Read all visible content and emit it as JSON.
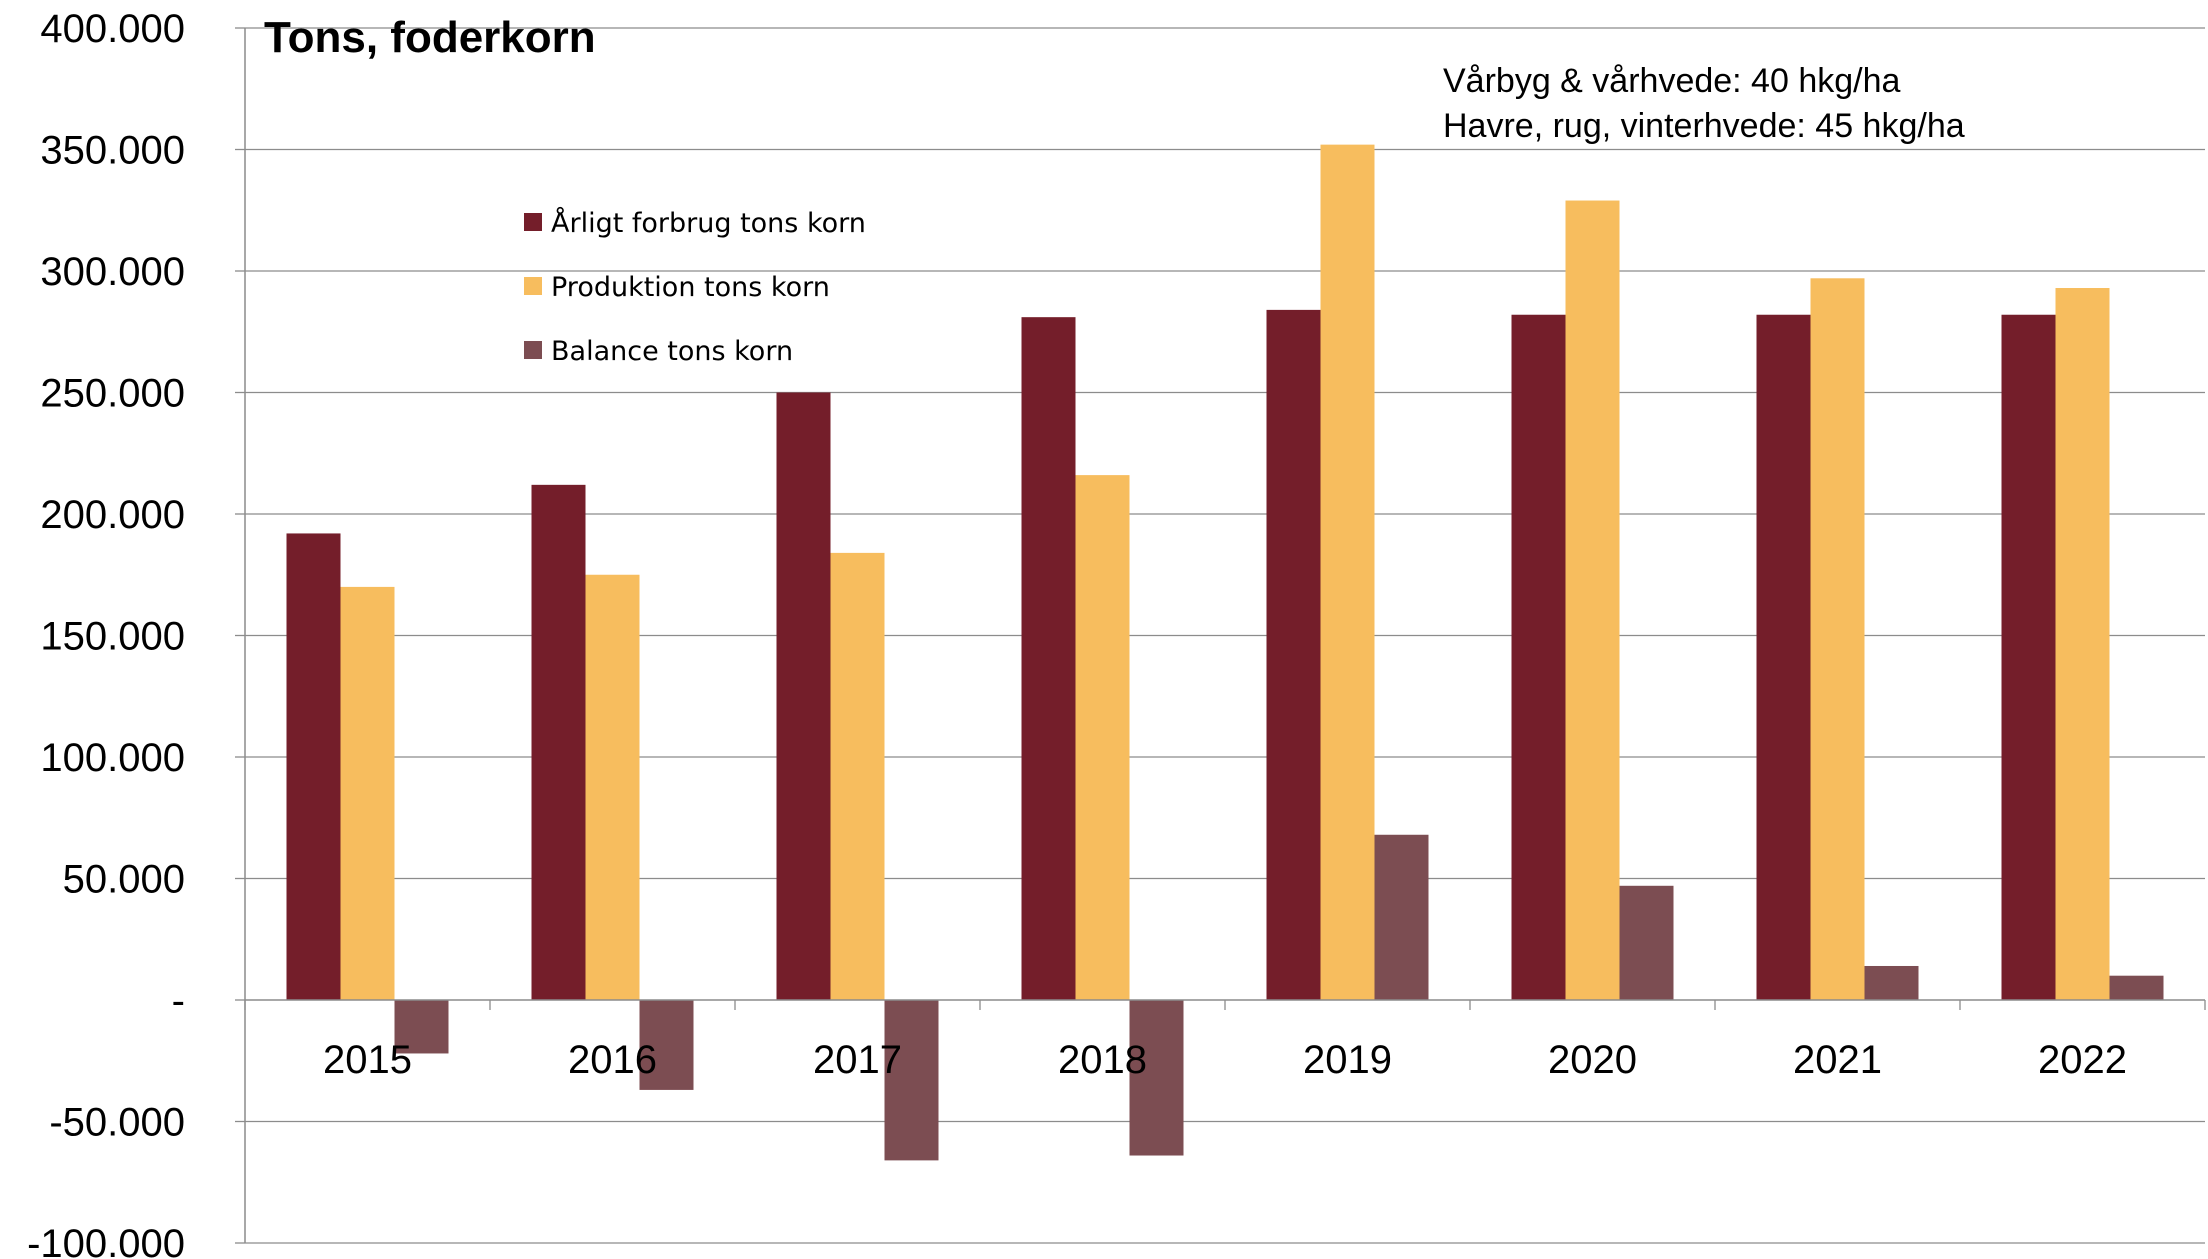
{
  "chart_data": {
    "type": "bar",
    "title": "Tons,  foderkorn",
    "notes": [
      "Vårbyg & vårhvede: 40 hkg/ha",
      "Havre, rug, vinterhvede: 45 hkg/ha"
    ],
    "categories": [
      "2015",
      "2016",
      "2017",
      "2018",
      "2019",
      "2020",
      "2021",
      "2022"
    ],
    "series": [
      {
        "name": "Årligt forbrug tons korn",
        "color": "#741E2A",
        "values": [
          192000,
          212000,
          250000,
          281000,
          284000,
          282000,
          282000,
          282000
        ]
      },
      {
        "name": "Produktion tons korn",
        "color": "#F7BD5E",
        "values": [
          170000,
          175000,
          184000,
          216000,
          352000,
          329000,
          297000,
          293000
        ]
      },
      {
        "name": "Balance tons korn",
        "color": "#7C4D52",
        "values": [
          -22000,
          -37000,
          -66000,
          -64000,
          68000,
          47000,
          14000,
          10000
        ]
      }
    ],
    "yticks": [
      "400.000",
      "350.000",
      "300.000",
      "250.000",
      "200.000",
      "150.000",
      "100.000",
      "50.000",
      "-",
      "-50.000",
      "-100.000"
    ],
    "ylim": [
      -100000,
      400000
    ],
    "grid": true,
    "legend_position": "upper-left inside plot"
  }
}
